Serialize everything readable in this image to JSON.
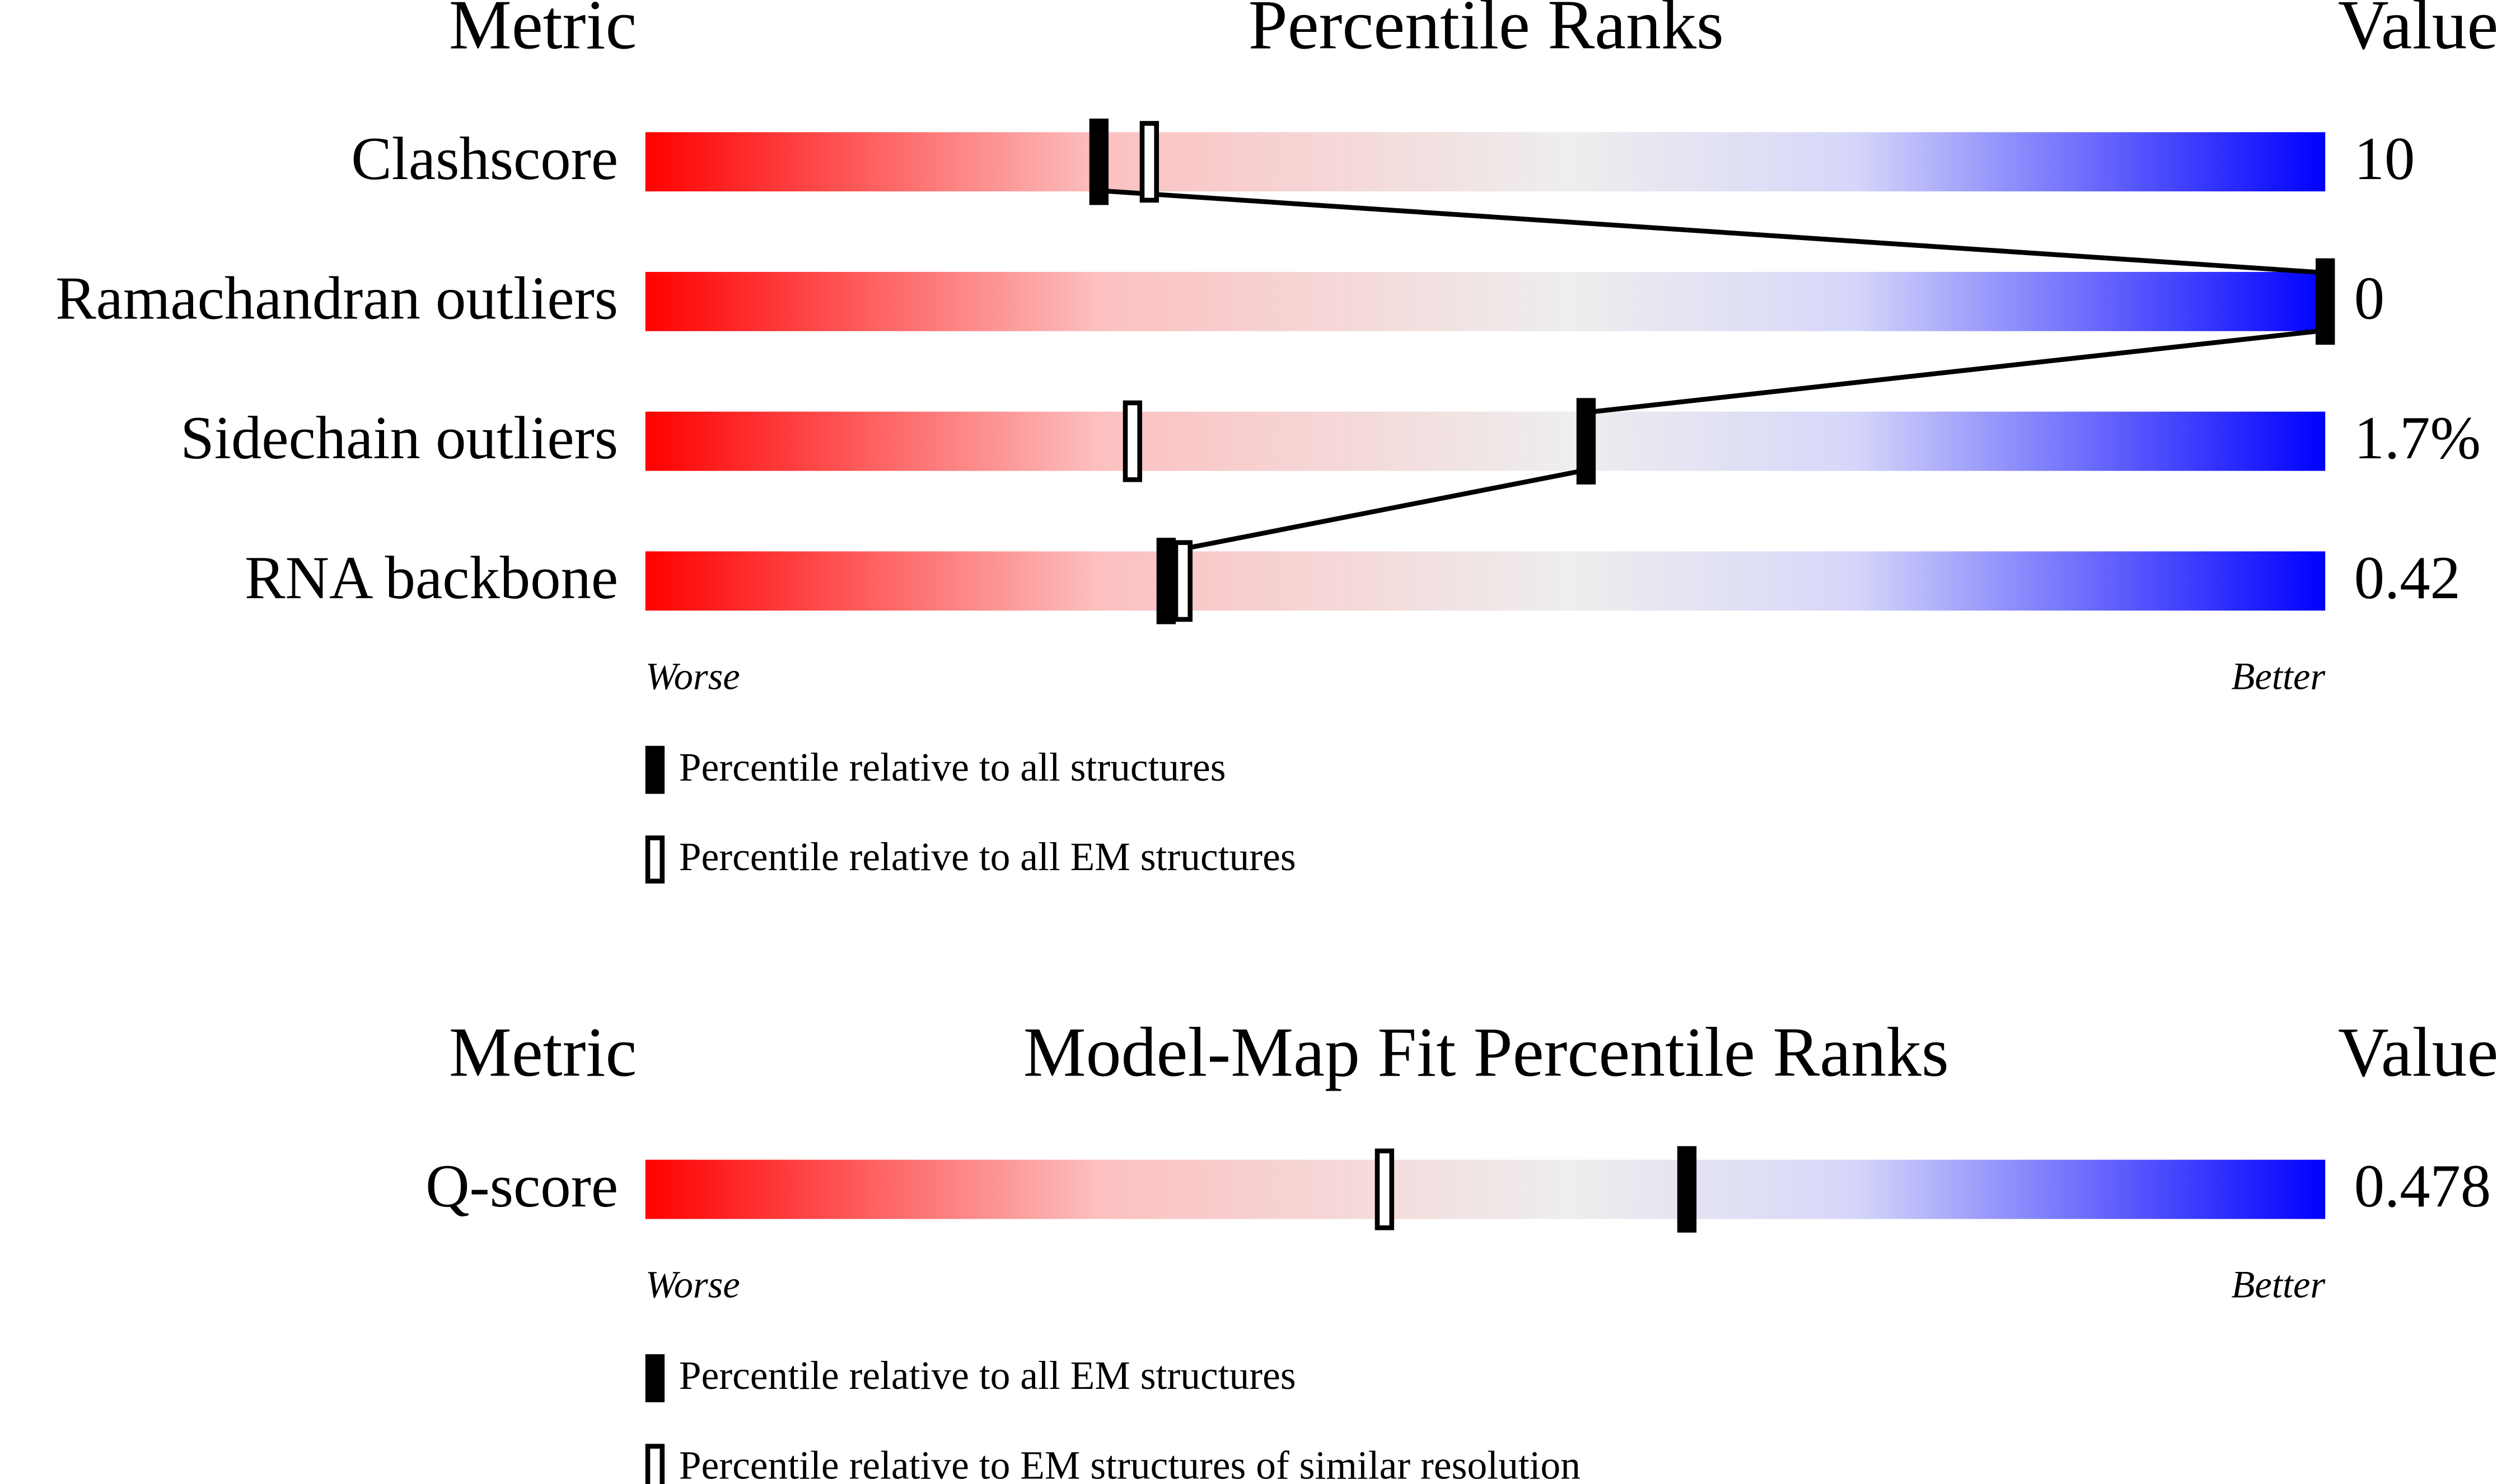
{
  "chart_data": [
    {
      "type": "slider",
      "header": {
        "metric": "Metric",
        "title": "Percentile Ranks",
        "value": "Value"
      },
      "categories": [
        "Clashscore",
        "Ramachandran outliers",
        "Sidechain outliers",
        "RNA backbone"
      ],
      "value_labels": [
        "10",
        "0",
        "1.7%",
        "0.42"
      ],
      "series": [
        {
          "name": "Percentile relative to all structures",
          "color": "#000000",
          "filled": true,
          "values": [
            27,
            100,
            56,
            31
          ]
        },
        {
          "name": "Percentile relative to all EM structures",
          "color": "#000000",
          "filled": false,
          "values": [
            30,
            100,
            29,
            32
          ]
        }
      ],
      "xlim": [
        0,
        100
      ],
      "worse": "Worse",
      "better": "Better"
    },
    {
      "type": "slider",
      "header": {
        "metric": "Metric",
        "title": "Model-Map Fit Percentile Ranks",
        "value": "Value"
      },
      "categories": [
        "Q-score"
      ],
      "value_labels": [
        "0.478"
      ],
      "series": [
        {
          "name": "Percentile relative to all EM structures",
          "color": "#000000",
          "filled": true,
          "values": [
            62
          ]
        },
        {
          "name": "Percentile relative to EM structures of similar resolution",
          "color": "#000000",
          "filled": false,
          "values": [
            44
          ]
        }
      ],
      "xlim": [
        0,
        100
      ],
      "worse": "Worse",
      "better": "Better"
    }
  ]
}
